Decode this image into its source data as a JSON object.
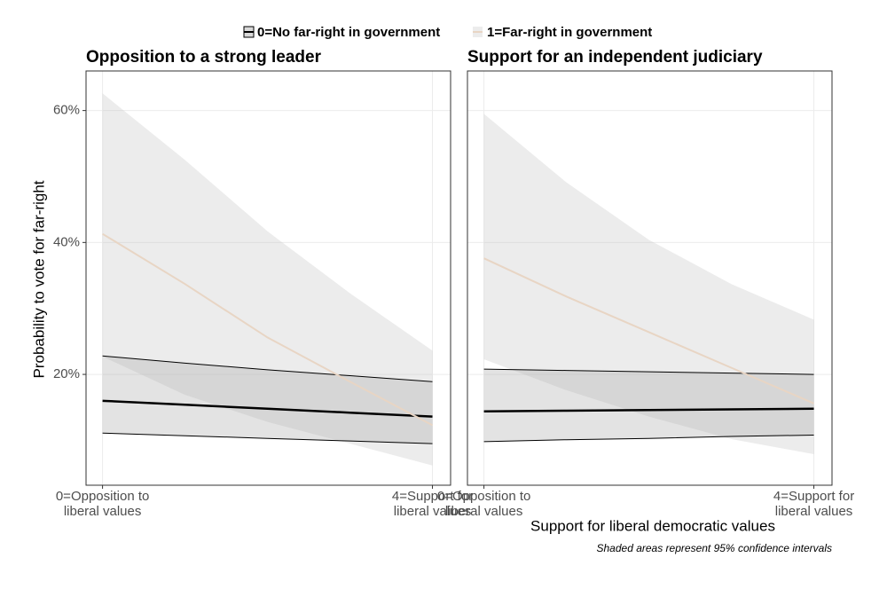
{
  "legend": [
    "0=No far-right in government",
    "1=Far-right in government"
  ],
  "y_label": "Probability to vote for far-right",
  "x_label": "Support for liberal democratic values",
  "note": "Shaded areas represent 95% confidence intervals",
  "chart_data": [
    {
      "type": "line",
      "title": "Opposition to a strong leader",
      "x": [
        0,
        1,
        2,
        3,
        4
      ],
      "xlim": [
        -0.2,
        4.22
      ],
      "xticks": [
        {
          "value": 0,
          "label": "0=Opposition to\nliberal values"
        },
        {
          "value": 4,
          "label": "4=Support for\nliberal values"
        }
      ],
      "ylim": [
        3.2,
        66
      ],
      "yticks": [
        {
          "value": 20,
          "label": "20%"
        },
        {
          "value": 40,
          "label": "40%"
        },
        {
          "value": 60,
          "label": "60%"
        }
      ],
      "grid": true,
      "series": [
        {
          "name": "0=No far-right in government",
          "color": "#000000",
          "values": [
            16.0,
            15.4,
            14.8,
            14.2,
            13.6
          ],
          "lower": [
            11.1,
            10.7,
            10.3,
            9.9,
            9.5
          ],
          "upper": [
            22.8,
            21.7,
            20.7,
            19.8,
            18.9
          ]
        },
        {
          "name": "1=Far-right in government",
          "color": "#e8d5c4",
          "values": [
            41.3,
            33.7,
            25.6,
            18.9,
            12.3
          ],
          "lower": [
            22.7,
            16.9,
            12.8,
            9.5,
            6.2
          ],
          "upper": [
            62.6,
            52.5,
            41.7,
            32.3,
            23.6
          ]
        }
      ]
    },
    {
      "type": "line",
      "title": "Support for an independent judiciary",
      "x": [
        0,
        1,
        2,
        3,
        4
      ],
      "xlim": [
        -0.2,
        4.22
      ],
      "xticks": [
        {
          "value": 0,
          "label": "0=Opposition to\nliberal values"
        },
        {
          "value": 4,
          "label": "4=Support for\nliberal values"
        }
      ],
      "ylim": [
        3.2,
        66
      ],
      "yticks": [
        20,
        40,
        60
      ],
      "grid": true,
      "series": [
        {
          "color": "#000000",
          "values": [
            14.4,
            14.5,
            14.6,
            14.7,
            14.8
          ],
          "lower": [
            9.8,
            10.1,
            10.3,
            10.6,
            10.8
          ],
          "upper": [
            20.8,
            20.6,
            20.4,
            20.2,
            20.0
          ]
        },
        {
          "color": "#e8d5c4",
          "values": [
            37.6,
            31.8,
            26.4,
            21.0,
            15.6
          ],
          "lower": [
            22.3,
            17.6,
            13.6,
            10.2,
            7.9
          ],
          "upper": [
            59.5,
            49.1,
            40.4,
            33.7,
            28.3
          ]
        }
      ]
    }
  ]
}
